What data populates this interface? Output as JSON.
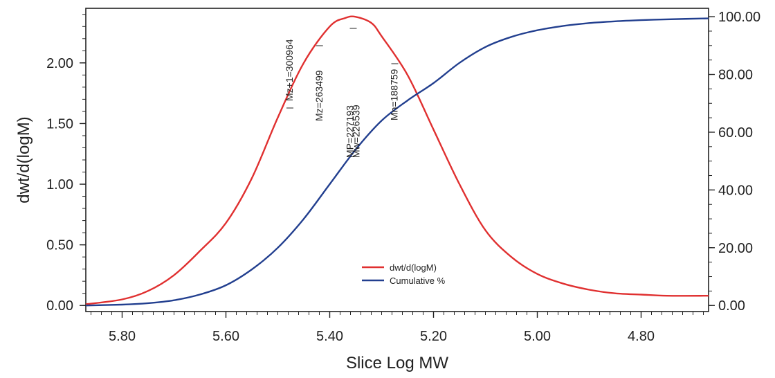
{
  "chart_data": {
    "type": "line",
    "xlabel": "Slice Log MW",
    "ylabel": "dwt/d(logM)",
    "x_reversed": true,
    "xlim": [
      5.87,
      4.67
    ],
    "ylim_left": [
      -0.05,
      2.45
    ],
    "ylim_right": [
      -2.1,
      102.9
    ],
    "x_ticks": [
      "5.80",
      "5.60",
      "5.40",
      "5.20",
      "5.00",
      "4.80"
    ],
    "y_left_ticks": [
      "0.00",
      "0.50",
      "1.00",
      "1.50",
      "2.00"
    ],
    "y_right_ticks": [
      "0.00",
      "20.00",
      "40.00",
      "60.00",
      "80.00",
      "100.00"
    ],
    "grid": false,
    "legend_position": "bottom-center",
    "series": [
      {
        "name": "dwt/d(logM)",
        "axis": "left",
        "color": "#e03030",
        "x": [
          5.87,
          5.8,
          5.75,
          5.7,
          5.65,
          5.6,
          5.55,
          5.5,
          5.45,
          5.4,
          5.37,
          5.35,
          5.32,
          5.3,
          5.25,
          5.2,
          5.15,
          5.1,
          5.05,
          5.0,
          4.95,
          4.9,
          4.85,
          4.8,
          4.75,
          4.67
        ],
        "values": [
          0.01,
          0.05,
          0.12,
          0.25,
          0.45,
          0.68,
          1.05,
          1.55,
          2.0,
          2.3,
          2.37,
          2.38,
          2.33,
          2.22,
          1.9,
          1.45,
          1.0,
          0.62,
          0.4,
          0.26,
          0.18,
          0.13,
          0.1,
          0.09,
          0.08,
          0.08
        ]
      },
      {
        "name": "Cumulative %",
        "axis": "right",
        "color": "#223f8f",
        "x": [
          5.87,
          5.8,
          5.75,
          5.7,
          5.65,
          5.6,
          5.55,
          5.5,
          5.45,
          5.4,
          5.35,
          5.3,
          5.25,
          5.2,
          5.15,
          5.1,
          5.05,
          5.0,
          4.95,
          4.9,
          4.85,
          4.8,
          4.75,
          4.67
        ],
        "values": [
          0.0,
          0.3,
          0.8,
          1.8,
          3.8,
          7.0,
          12.5,
          20.0,
          30.0,
          42.0,
          54.0,
          64.0,
          71.0,
          77.0,
          84.0,
          89.5,
          93.0,
          95.3,
          96.8,
          97.8,
          98.4,
          98.8,
          99.1,
          99.4
        ]
      }
    ],
    "annotations": [
      {
        "text": "Mz+1=300964",
        "x": 5.478
      },
      {
        "text": "Mz=263499",
        "x": 5.421
      },
      {
        "text": "MP=227193",
        "x": 5.356
      },
      {
        "text": "Mw=226539",
        "x": 5.355
      },
      {
        "text": "Mn=188759",
        "x": 5.276
      }
    ]
  }
}
